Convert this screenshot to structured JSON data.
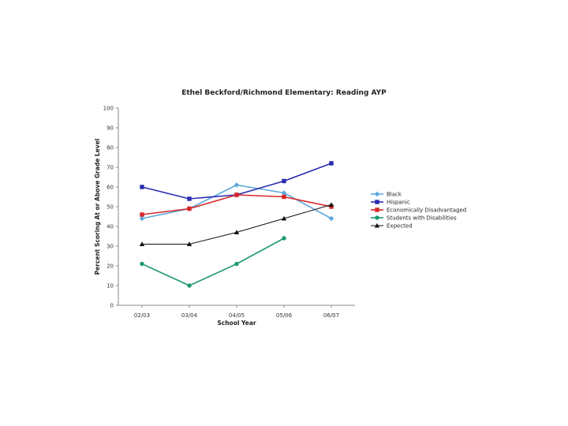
{
  "chart_data": {
    "type": "line",
    "title": "Ethel Beckford/Richmond Elementary:  Reading AYP",
    "xlabel": "School Year",
    "ylabel": "Percent Scoring At or Above Grade Level",
    "categories": [
      "02/03",
      "03/04",
      "04/05",
      "05/06",
      "06/07"
    ],
    "ylim": [
      0,
      100
    ],
    "yticks": [
      0,
      10,
      20,
      30,
      40,
      50,
      60,
      70,
      80,
      90,
      100
    ],
    "grid": false,
    "legend_position": "right",
    "series": [
      {
        "name": "Black",
        "color": "#5aa7dc",
        "marker": "diamond",
        "values": [
          44,
          49,
          61,
          57,
          44
        ]
      },
      {
        "name": "Hispanic",
        "color": "#2b2bb0",
        "marker": "square",
        "values": [
          60,
          54,
          56,
          63,
          72
        ]
      },
      {
        "name": "Economically Disadvantaged",
        "color": "#d62828",
        "marker": "square",
        "values": [
          46,
          49,
          56,
          55,
          50
        ]
      },
      {
        "name": "Students with Disabilities",
        "color": "#1e9a6a",
        "marker": "circle",
        "values": [
          21,
          10,
          21,
          34,
          null
        ]
      },
      {
        "name": "Expected",
        "color": "#111111",
        "marker": "triangle",
        "values": [
          31,
          31,
          37,
          44,
          51
        ]
      }
    ]
  }
}
